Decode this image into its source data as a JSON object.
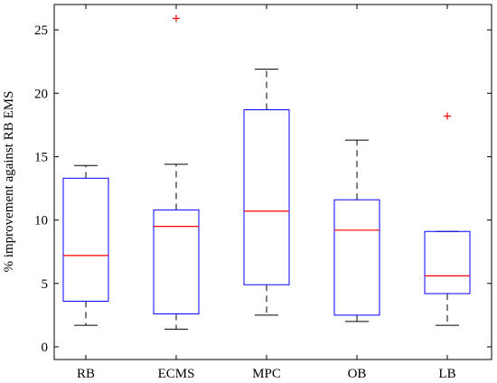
{
  "chart_data": {
    "type": "boxplot",
    "title": "",
    "xlabel": "",
    "ylabel": "% improvement against RB EMS",
    "ylim": [
      -1,
      27
    ],
    "yticks": [
      0,
      5,
      10,
      15,
      20,
      25
    ],
    "grid": false,
    "colors": {
      "box": "#0000ff",
      "median": "#ff0000",
      "whisker": "#000000",
      "outlier": "#ff0000"
    },
    "categories": [
      "RB",
      "ECMS",
      "MPC",
      "OB",
      "LB"
    ],
    "boxes": [
      {
        "name": "RB",
        "whisker_low": 1.7,
        "q1": 3.6,
        "median": 7.2,
        "q3": 13.3,
        "whisker_high": 14.3,
        "outliers": []
      },
      {
        "name": "ECMS",
        "whisker_low": 1.4,
        "q1": 2.6,
        "median": 9.5,
        "q3": 10.8,
        "whisker_high": 14.4,
        "outliers": [
          25.9
        ]
      },
      {
        "name": "MPC",
        "whisker_low": 2.5,
        "q1": 4.9,
        "median": 10.7,
        "q3": 18.7,
        "whisker_high": 21.9,
        "outliers": []
      },
      {
        "name": "OB",
        "whisker_low": 2.0,
        "q1": 2.5,
        "median": 9.2,
        "q3": 11.6,
        "whisker_high": 16.3,
        "outliers": []
      },
      {
        "name": "LB",
        "whisker_low": 1.7,
        "q1": 4.2,
        "median": 5.6,
        "q3": 9.1,
        "whisker_high": 9.1,
        "outliers": [
          18.2
        ]
      }
    ]
  }
}
